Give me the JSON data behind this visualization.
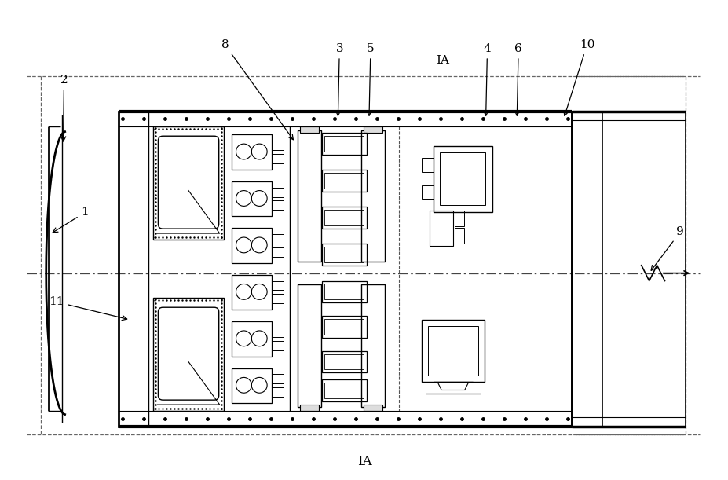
{
  "bg_color": "#ffffff",
  "lc": "#000000",
  "fig_width": 9.28,
  "fig_height": 6.11,
  "dpi": 100
}
